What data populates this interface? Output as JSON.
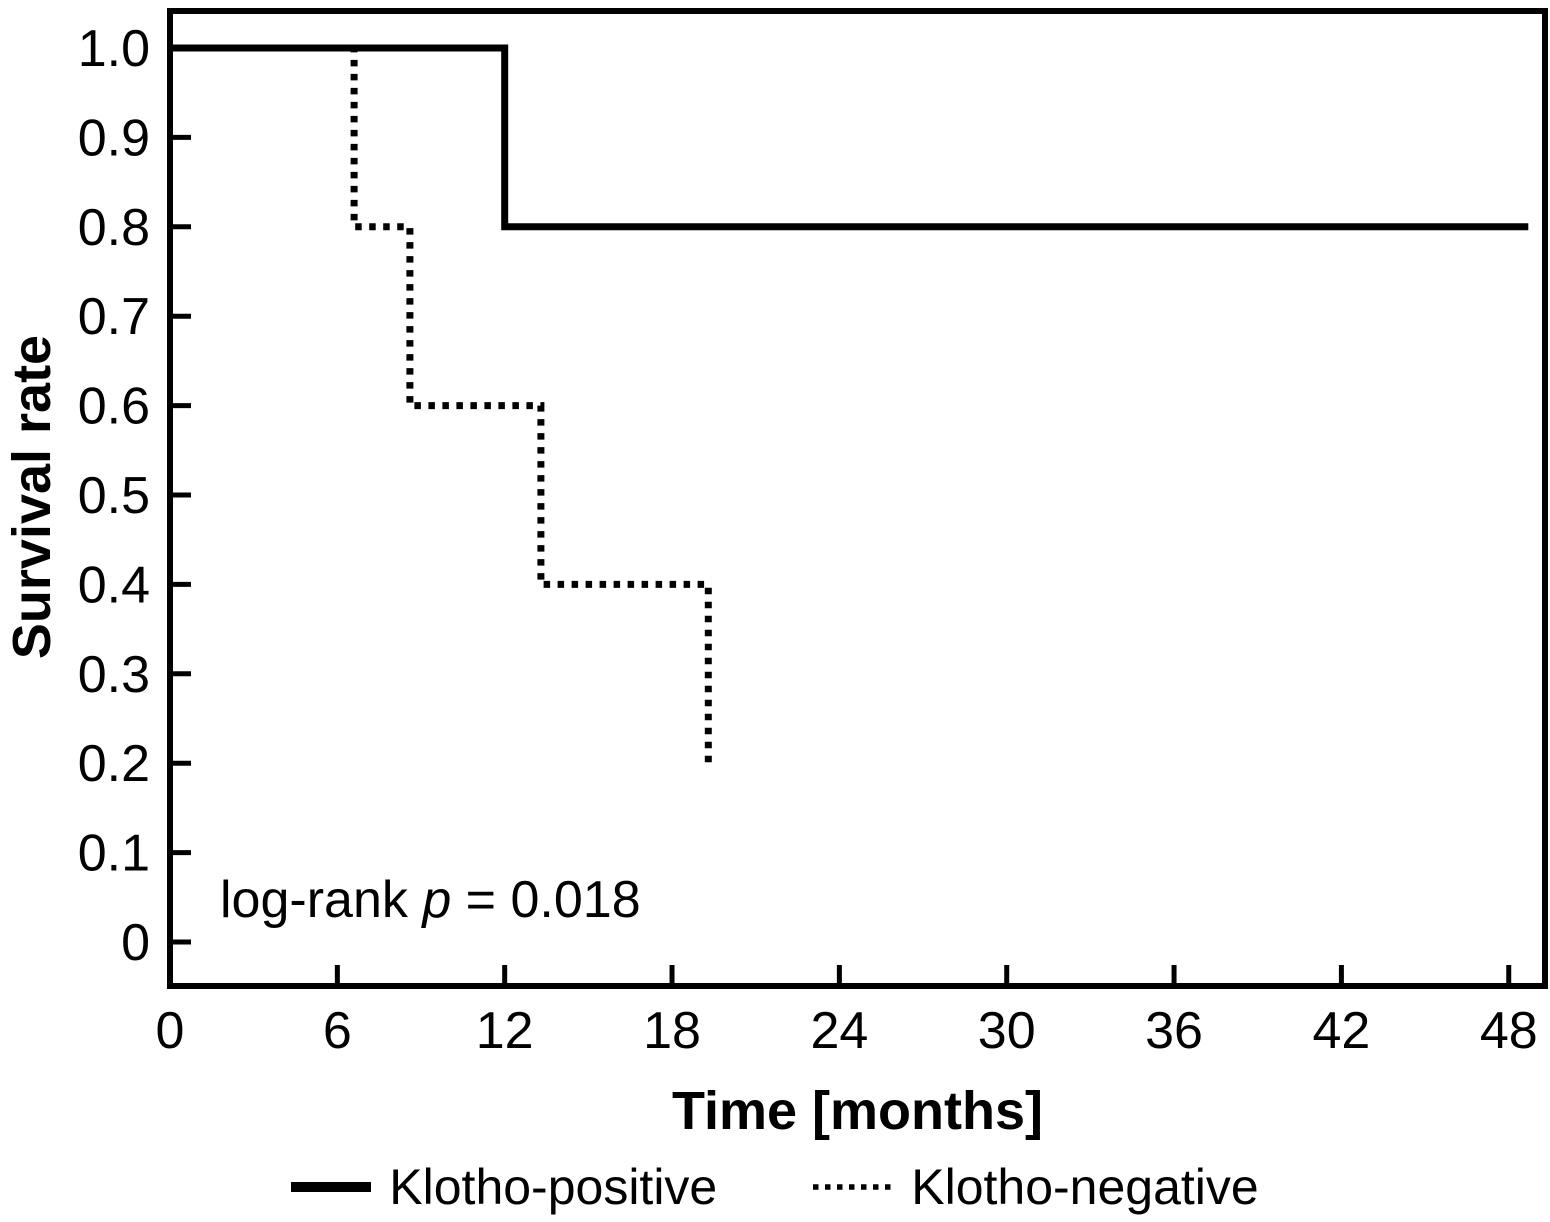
{
  "figure": {
    "background": "#ffffff",
    "line_color": "#000000"
  },
  "chart_data": {
    "type": "line",
    "subtype": "kaplan-meier-step",
    "title": "",
    "xlabel": "Time [months]",
    "ylabel": "Survival rate",
    "xlim": [
      0,
      49.3
    ],
    "ylim": [
      0,
      1.0
    ],
    "x_ticks": [
      0,
      6,
      12,
      18,
      24,
      30,
      36,
      42,
      48
    ],
    "y_ticks": [
      {
        "label": "1.0",
        "value": 1.0
      },
      {
        "label": "0.9",
        "value": 0.9
      },
      {
        "label": "0.8",
        "value": 0.8
      },
      {
        "label": "0.7",
        "value": 0.7
      },
      {
        "label": "0.6",
        "value": 0.6
      },
      {
        "label": "0.5",
        "value": 0.5
      },
      {
        "label": "0.4",
        "value": 0.4
      },
      {
        "label": "0.3",
        "value": 0.3
      },
      {
        "label": "0.2",
        "value": 0.2
      },
      {
        "label": "0.1",
        "value": 0.1
      },
      {
        "label": "0",
        "value": 0.0
      }
    ],
    "grid": false,
    "legend_position": "bottom-center",
    "annotation": {
      "prefix": "log-rank ",
      "p_symbol": "p",
      "suffix": " = 0.018"
    },
    "series": [
      {
        "name": "Klotho-positive",
        "style": "solid",
        "color": "#000000",
        "x": [
          0,
          12,
          12,
          48.7
        ],
        "y": [
          1.0,
          1.0,
          0.8,
          0.8
        ]
      },
      {
        "name": "Klotho-negative",
        "style": "dotted",
        "color": "#000000",
        "x": [
          0,
          6.6,
          6.6,
          8.6,
          8.6,
          13.3,
          13.3,
          19.3,
          19.3
        ],
        "y": [
          1.0,
          1.0,
          0.8,
          0.8,
          0.6,
          0.6,
          0.4,
          0.4,
          0.2
        ]
      }
    ]
  }
}
